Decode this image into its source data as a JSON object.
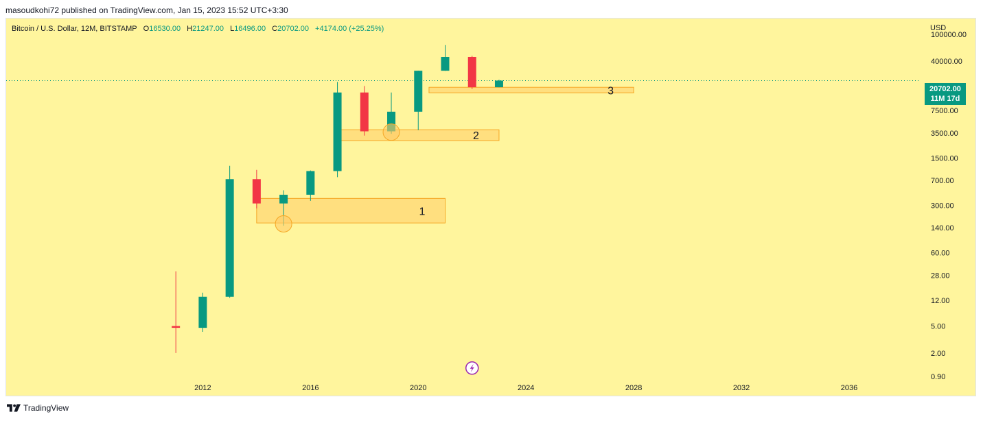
{
  "header": {
    "published": "masoudkohi72 published on TradingView.com, Jan 15, 2023 15:52 UTC+3:30"
  },
  "symbol_bar": {
    "name": "Bitcoin / U.S. Dollar, 12M, BITSTAMP",
    "open_label": "O",
    "open": "16530.00",
    "high_label": "H",
    "high": "21247.00",
    "low_label": "L",
    "low": "16496.00",
    "close_label": "C",
    "close": "20702.00",
    "change": "+4174.00 (+25.25%)"
  },
  "price_axis": {
    "currency": "USD"
  },
  "last_price": {
    "value": "20702.00",
    "countdown": "11M 17d"
  },
  "footer": {
    "brand": "TradingView"
  },
  "colors": {
    "background": "#fff59d",
    "up": "#089981",
    "down": "#f23645",
    "zone_fill": "#ffcc66",
    "zone_border": "#f5a623",
    "last_price": "#089981",
    "lightning": "#9c27b0"
  },
  "icons": {
    "logo": "tradingview-logo-icon",
    "marker": "lightning-icon"
  },
  "chart_data": {
    "type": "candlestick",
    "scale": "log",
    "y_ticks": [
      100000,
      40000,
      7500,
      3500,
      1500,
      700,
      300,
      140,
      60,
      28,
      12,
      5,
      2,
      0.9
    ],
    "y_tick_labels": [
      "100000.00",
      "40000.00",
      "7500.00",
      "3500.00",
      "1500.00",
      "700.00",
      "300.00",
      "140.00",
      "60.00",
      "28.00",
      "12.00",
      "5.00",
      "2.00",
      "0.90"
    ],
    "x_ticks": [
      2012,
      2016,
      2020,
      2024,
      2028,
      2032,
      2036
    ],
    "x_tick_labels": [
      "2012",
      "2016",
      "2020",
      "2024",
      "2028",
      "2032",
      "2036"
    ],
    "ylim": [
      0.75,
      170000
    ],
    "xlim": [
      2004.7,
      2038.6
    ],
    "candles": [
      {
        "year": 2011,
        "open": 5.0,
        "high": 32,
        "low": 2.0,
        "close": 4.7
      },
      {
        "year": 2012,
        "open": 4.7,
        "high": 15.5,
        "low": 4.1,
        "close": 13.5
      },
      {
        "year": 2013,
        "open": 13.5,
        "high": 1150,
        "low": 13.0,
        "close": 730
      },
      {
        "year": 2014,
        "open": 730,
        "high": 1000,
        "low": 270,
        "close": 320
      },
      {
        "year": 2015,
        "open": 320,
        "high": 500,
        "low": 150,
        "close": 430
      },
      {
        "year": 2016,
        "open": 430,
        "high": 980,
        "low": 350,
        "close": 960
      },
      {
        "year": 2017,
        "open": 960,
        "high": 19700,
        "low": 780,
        "close": 13800
      },
      {
        "year": 2018,
        "open": 13800,
        "high": 17200,
        "low": 3200,
        "close": 3700
      },
      {
        "year": 2019,
        "open": 3700,
        "high": 13800,
        "low": 3400,
        "close": 7200
      },
      {
        "year": 2020,
        "open": 7200,
        "high": 29000,
        "low": 3850,
        "close": 28900
      },
      {
        "year": 2021,
        "open": 28900,
        "high": 69000,
        "low": 28800,
        "close": 46200
      },
      {
        "year": 2022,
        "open": 46200,
        "high": 48000,
        "low": 15500,
        "close": 16530
      },
      {
        "year": 2023,
        "open": 16530,
        "high": 21247,
        "low": 16496,
        "close": 20702
      }
    ],
    "last_price_line": 20702,
    "zones": [
      {
        "label": "1",
        "x_start": 2014.0,
        "x_end": 2021.0,
        "y_low": 165,
        "y_high": 380,
        "marker_year": 2015,
        "marker_price": 160
      },
      {
        "label": "2",
        "x_start": 2017.0,
        "x_end": 2023.0,
        "y_low": 2700,
        "y_high": 3900,
        "marker_year": 2019,
        "marker_price": 3600
      },
      {
        "label": "3",
        "x_start": 2020.4,
        "x_end": 2028.0,
        "y_low": 13600,
        "y_high": 16500
      }
    ],
    "marker_lightning": {
      "year": 2022,
      "price": 1.2
    }
  }
}
